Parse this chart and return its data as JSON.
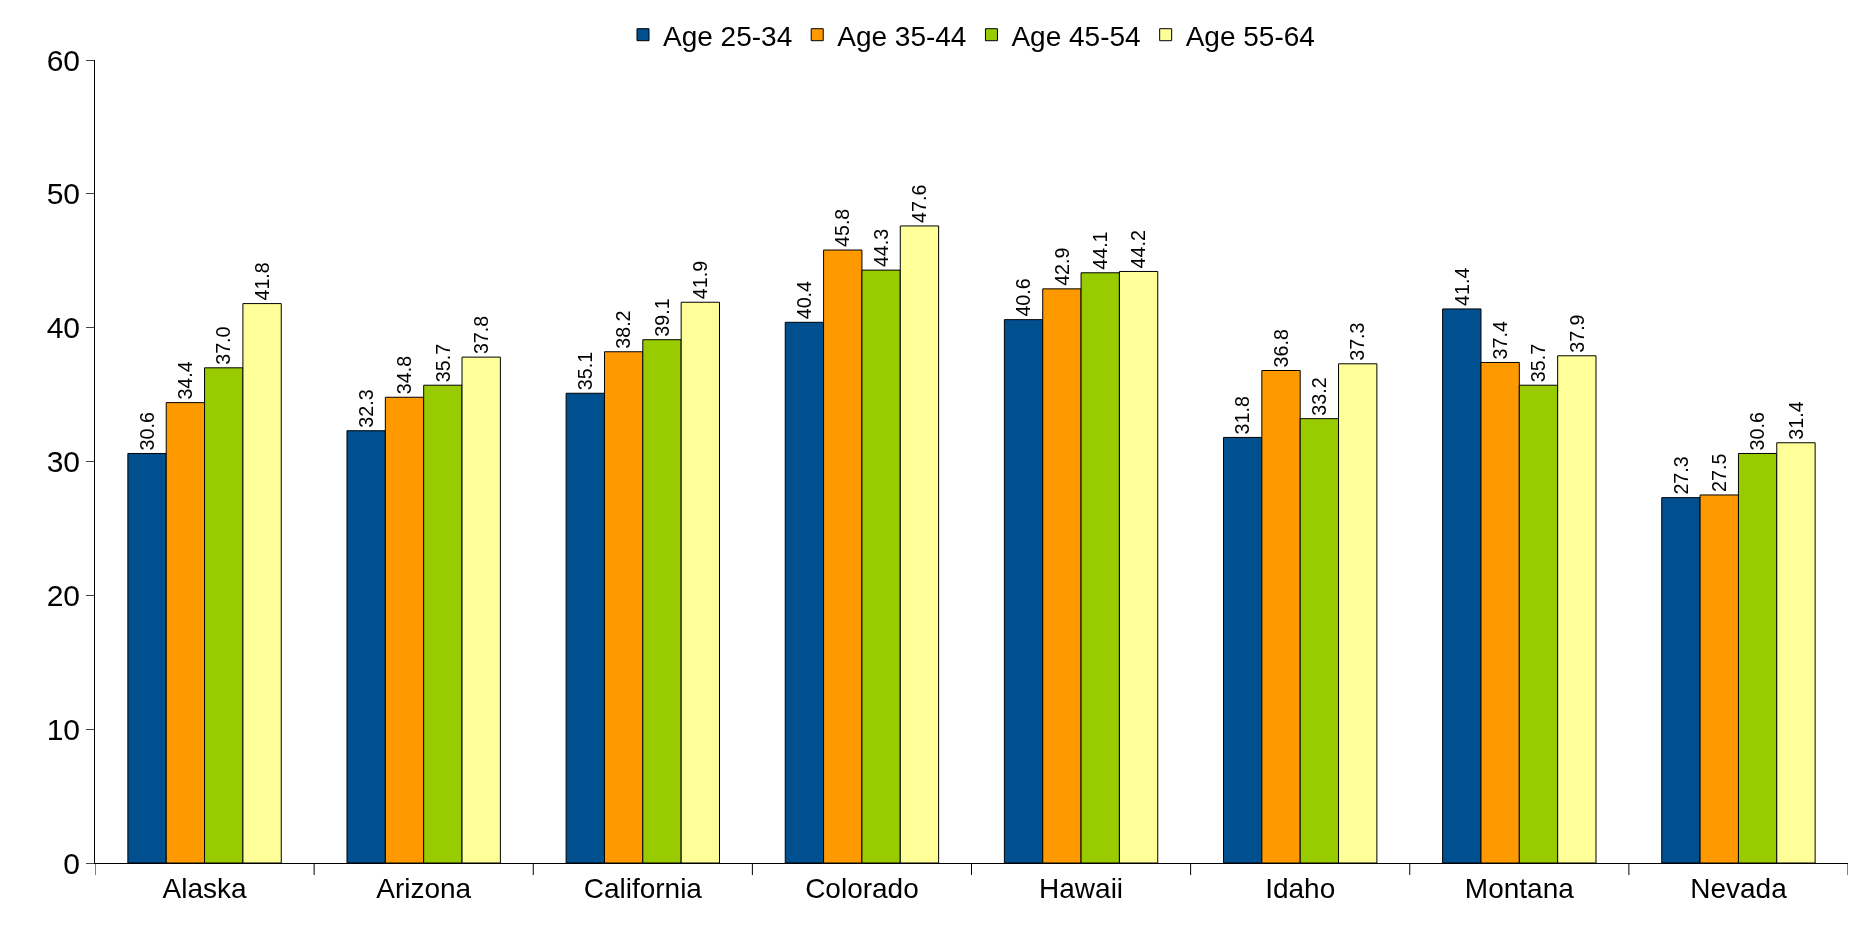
{
  "chart_data": {
    "type": "bar",
    "categories": [
      "Alaska",
      "Arizona",
      "California",
      "Colorado",
      "Hawaii",
      "Idaho",
      "Montana",
      "Nevada"
    ],
    "series": [
      {
        "name": "Age 25-34",
        "color": "#004f8f",
        "values": [
          30.6,
          32.3,
          35.1,
          40.4,
          40.6,
          31.8,
          41.4,
          27.3
        ],
        "value_labels": [
          "30.6",
          "32.3",
          "35.1",
          "40.4",
          "40.6",
          "31.8",
          "41.4",
          "27.3"
        ]
      },
      {
        "name": "Age 35-44",
        "color": "#ff9900",
        "values": [
          34.4,
          34.8,
          38.2,
          45.8,
          42.9,
          36.8,
          37.4,
          27.5
        ],
        "value_labels": [
          "34.4",
          "34.8",
          "38.2",
          "45.8",
          "42.9",
          "36.8",
          "37.4",
          "27.5"
        ]
      },
      {
        "name": "Age 45-54",
        "color": "#99cc00",
        "values": [
          37.0,
          35.7,
          39.1,
          44.3,
          44.1,
          33.2,
          35.7,
          30.6
        ],
        "value_labels": [
          "37.0",
          "35.7",
          "39.1",
          "44.3",
          "44.1",
          "33.2",
          "35.7",
          "30.6"
        ]
      },
      {
        "name": "Age 55-64",
        "color": "#ffff99",
        "values": [
          41.8,
          37.8,
          41.9,
          47.6,
          44.2,
          37.3,
          37.9,
          31.4
        ],
        "value_labels": [
          "41.8",
          "37.8",
          "41.9",
          "47.6",
          "44.2",
          "37.3",
          "37.9",
          "31.4"
        ]
      }
    ],
    "ylim": [
      0,
      60
    ],
    "yticks": [
      0,
      10,
      20,
      30,
      40,
      50,
      60
    ],
    "grid": false,
    "legend": "top"
  }
}
